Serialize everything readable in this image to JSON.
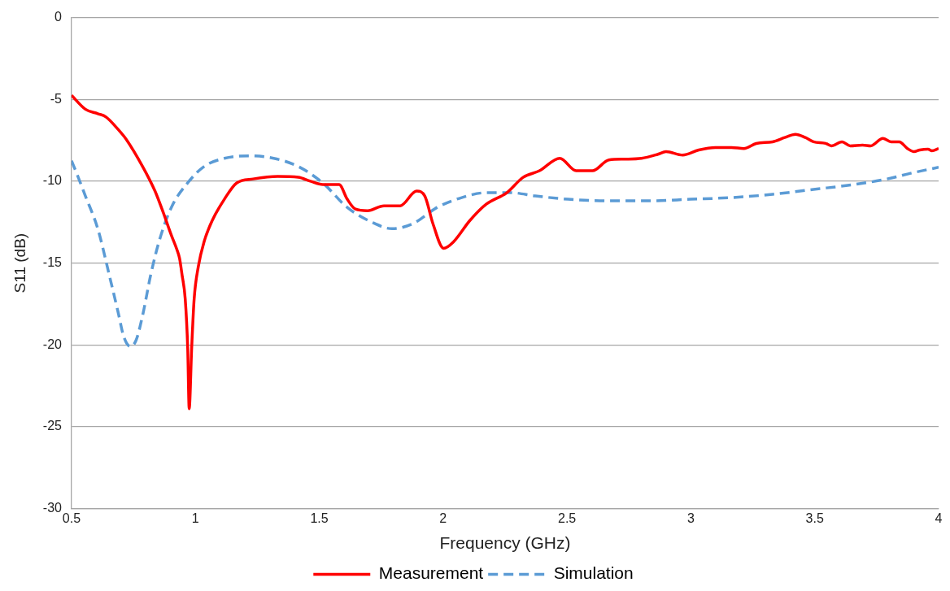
{
  "chart_data": {
    "type": "line",
    "xlabel": "Frequency (GHz)",
    "ylabel": "S11 (dB)",
    "xlim": [
      0.5,
      4
    ],
    "xticks": [
      0.5,
      1,
      1.5,
      2,
      2.5,
      3,
      3.5,
      4
    ],
    "ylim": [
      -30,
      0
    ],
    "yticks": [
      0,
      -5,
      -10,
      -15,
      -20,
      -25,
      -30
    ],
    "grid": "y",
    "legend": "bottom",
    "marker": "none",
    "series": [
      {
        "name": "Measurement",
        "color": "#ff0000",
        "line_style": "solid",
        "x": [
          0.5,
          0.556,
          0.606,
          0.639,
          0.688,
          0.721,
          0.787,
          0.837,
          0.87,
          0.903,
          0.926,
          0.936,
          0.946,
          0.959,
          0.969,
          0.975,
          0.985,
          0.995,
          1.012,
          1.035,
          1.068,
          1.117,
          1.167,
          1.233,
          1.332,
          1.415,
          1.464,
          1.514,
          1.58,
          1.613,
          1.646,
          1.695,
          1.761,
          1.827,
          1.893,
          1.926,
          1.959,
          2.002,
          2.042,
          2.108,
          2.174,
          2.257,
          2.323,
          2.389,
          2.471,
          2.537,
          2.603,
          2.669,
          2.735,
          2.801,
          2.867,
          2.9,
          2.967,
          3.032,
          3.099,
          3.164,
          3.214,
          3.264,
          3.33,
          3.379,
          3.422,
          3.462,
          3.495,
          3.544,
          3.567,
          3.61,
          3.643,
          3.693,
          3.726,
          3.775,
          3.808,
          3.841,
          3.874,
          3.901,
          3.924,
          3.957,
          3.973,
          4.0
        ],
        "values": [
          -4.75,
          -5.6,
          -5.87,
          -6.07,
          -6.83,
          -7.44,
          -9.1,
          -10.6,
          -11.9,
          -13.3,
          -14.2,
          -14.7,
          -15.7,
          -17.2,
          -20.2,
          -23.9,
          -20.2,
          -17.2,
          -15.2,
          -13.7,
          -12.4,
          -11.1,
          -10.1,
          -9.86,
          -9.71,
          -9.76,
          -10.0,
          -10.2,
          -10.2,
          -11.1,
          -11.7,
          -11.8,
          -11.5,
          -11.5,
          -10.6,
          -10.9,
          -12.6,
          -14.1,
          -13.7,
          -12.4,
          -11.4,
          -10.7,
          -9.76,
          -9.36,
          -8.6,
          -9.36,
          -9.36,
          -8.7,
          -8.65,
          -8.6,
          -8.35,
          -8.19,
          -8.4,
          -8.09,
          -7.94,
          -7.94,
          -8.0,
          -7.69,
          -7.59,
          -7.33,
          -7.13,
          -7.33,
          -7.59,
          -7.69,
          -7.84,
          -7.59,
          -7.84,
          -7.79,
          -7.84,
          -7.38,
          -7.59,
          -7.59,
          -8.0,
          -8.19,
          -8.09,
          -8.04,
          -8.14,
          -8.0
        ]
      },
      {
        "name": "Simulation",
        "color": "#5b9bd5",
        "line_style": "dashed",
        "x": [
          0.5,
          0.523,
          0.556,
          0.606,
          0.655,
          0.688,
          0.711,
          0.738,
          0.761,
          0.787,
          0.82,
          0.853,
          0.903,
          0.969,
          1.035,
          1.117,
          1.217,
          1.316,
          1.415,
          1.514,
          1.613,
          1.712,
          1.794,
          1.877,
          1.976,
          2.075,
          2.174,
          2.273,
          2.372,
          2.504,
          2.669,
          2.834,
          2.999,
          3.164,
          3.33,
          3.495,
          3.66,
          3.792,
          3.891,
          4.0
        ],
        "values": [
          -8.75,
          -9.6,
          -10.9,
          -12.9,
          -15.9,
          -18.0,
          -19.5,
          -20.1,
          -19.7,
          -18.2,
          -15.7,
          -13.7,
          -11.6,
          -10.1,
          -9.1,
          -8.6,
          -8.45,
          -8.6,
          -9.1,
          -10.1,
          -11.6,
          -12.5,
          -12.9,
          -12.6,
          -11.6,
          -11.0,
          -10.7,
          -10.7,
          -10.9,
          -11.1,
          -11.2,
          -11.2,
          -11.1,
          -11.0,
          -10.8,
          -10.5,
          -10.2,
          -9.86,
          -9.5,
          -9.15
        ]
      }
    ]
  }
}
